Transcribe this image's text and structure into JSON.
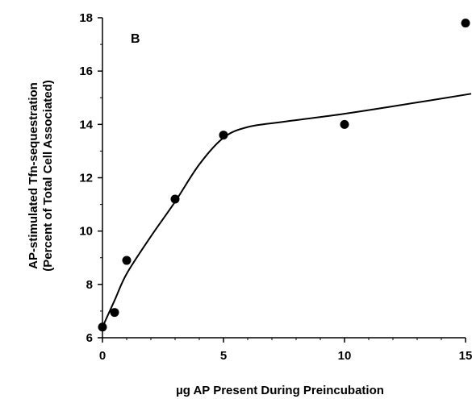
{
  "chart_data": {
    "type": "scatter",
    "panel_label": "B",
    "xlabel": "µg AP Present During Preincubation",
    "ylabel_line1": "AP-stimulated Tfn-sequestration",
    "ylabel_line2": "(Percent of Total Cell Associated)",
    "xlim": [
      0,
      15
    ],
    "ylim": [
      6,
      18
    ],
    "x_ticks": [
      0,
      5,
      10,
      15
    ],
    "y_ticks": [
      6,
      8,
      10,
      12,
      14,
      16,
      18
    ],
    "grid": false,
    "points": [
      {
        "x": 0,
        "y": 6.4
      },
      {
        "x": 0.5,
        "y": 6.95
      },
      {
        "x": 1,
        "y": 8.9
      },
      {
        "x": 3,
        "y": 11.2
      },
      {
        "x": 5,
        "y": 13.6
      },
      {
        "x": 10,
        "y": 14.0
      },
      {
        "x": 15,
        "y": 17.8
      }
    ],
    "fit_curve": [
      {
        "x": 0,
        "y": 6.4
      },
      {
        "x": 0.5,
        "y": 7.4
      },
      {
        "x": 1,
        "y": 8.4
      },
      {
        "x": 2,
        "y": 9.8
      },
      {
        "x": 3,
        "y": 11.1
      },
      {
        "x": 4,
        "y": 12.5
      },
      {
        "x": 5,
        "y": 13.5
      },
      {
        "x": 6,
        "y": 13.9
      },
      {
        "x": 7.5,
        "y": 14.1
      },
      {
        "x": 10,
        "y": 14.4
      },
      {
        "x": 12.5,
        "y": 14.75
      },
      {
        "x": 15.5,
        "y": 15.15
      }
    ],
    "colors": {
      "marker": "#000000",
      "line": "#000000"
    }
  }
}
